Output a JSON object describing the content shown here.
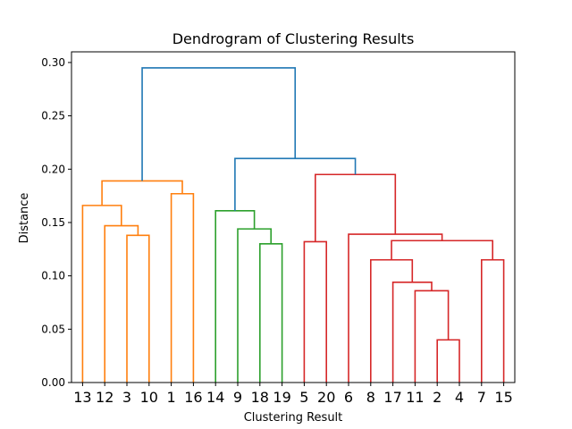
{
  "chart_data": {
    "type": "dendrogram",
    "title": "Dendrogram of Clustering Results",
    "xlabel": "Clustering Result",
    "ylabel": "Distance",
    "ylim": [
      0.0,
      0.3
    ],
    "yticks": [
      "0.00",
      "0.05",
      "0.10",
      "0.15",
      "0.20",
      "0.25",
      "0.30"
    ],
    "leaf_order": [
      "13",
      "12",
      "3",
      "10",
      "1",
      "16",
      "14",
      "9",
      "18",
      "19",
      "5",
      "20",
      "6",
      "8",
      "17",
      "11",
      "2",
      "4",
      "7",
      "15"
    ],
    "cluster_colors": {
      "C1": "#ff7f0e",
      "C2": "#2ca02c",
      "C3": "#d62728",
      "above_threshold": "#1f77b4"
    },
    "merges": [
      {
        "left": "3",
        "right": "10",
        "height": 0.138,
        "color": "C1"
      },
      {
        "left": "12",
        "right": "3+10",
        "height": 0.147,
        "color": "C1"
      },
      {
        "left": "13",
        "right": "12+3+10",
        "height": 0.166,
        "color": "C1"
      },
      {
        "left": "1",
        "right": "16",
        "height": 0.177,
        "color": "C1"
      },
      {
        "left": "13..10",
        "right": "1+16",
        "height": 0.189,
        "color": "C1"
      },
      {
        "left": "18",
        "right": "19",
        "height": 0.13,
        "color": "C2"
      },
      {
        "left": "9",
        "right": "18+19",
        "height": 0.144,
        "color": "C2"
      },
      {
        "left": "14",
        "right": "9+18+19",
        "height": 0.161,
        "color": "C2"
      },
      {
        "left": "5",
        "right": "20",
        "height": 0.132,
        "color": "C3"
      },
      {
        "left": "2",
        "right": "4",
        "height": 0.04,
        "color": "C3"
      },
      {
        "left": "11",
        "right": "2+4",
        "height": 0.086,
        "color": "C3"
      },
      {
        "left": "17",
        "right": "11+2+4",
        "height": 0.094,
        "color": "C3"
      },
      {
        "left": "8",
        "right": "17+11+2+4",
        "height": 0.115,
        "color": "C3"
      },
      {
        "left": "7",
        "right": "15",
        "height": 0.115,
        "color": "C3"
      },
      {
        "left": "8..4",
        "right": "7+15",
        "height": 0.133,
        "color": "C3"
      },
      {
        "left": "6",
        "right": "8..15",
        "height": 0.139,
        "color": "C3"
      },
      {
        "left": "5+20",
        "right": "6..15",
        "height": 0.195,
        "color": "C3"
      },
      {
        "left": "14..19",
        "right": "5..15",
        "height": 0.21,
        "color": "above_threshold"
      },
      {
        "left": "13..16",
        "right": "14..15",
        "height": 0.295,
        "color": "above_threshold"
      }
    ]
  }
}
